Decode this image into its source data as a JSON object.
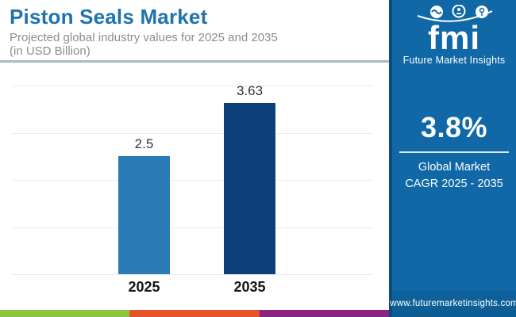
{
  "header": {
    "title": "Piston Seals Market",
    "subtitle_line1": "Projected global industry values for 2025 and 2035",
    "subtitle_line2": "(in USD Billion)"
  },
  "chart_data": {
    "type": "bar",
    "title": "Piston Seals Market",
    "subtitle": "Projected global industry values for 2025 and 2035 (in USD Billion)",
    "categories": [
      "2025",
      "2035"
    ],
    "values": [
      2.5,
      3.63
    ],
    "value_labels": [
      "2.5",
      "3.63"
    ],
    "bar_colors": [
      "#2a7ab5",
      "#0d4078"
    ],
    "xlabel": "",
    "ylabel": "",
    "ylim": [
      0,
      4
    ],
    "gridline_step": 1,
    "grid": true,
    "legend": "none"
  },
  "sidebar": {
    "logo": {
      "brand": "fmi",
      "caption": "Future Market Insights",
      "icons": [
        "handshake-icon",
        "person-chart-icon",
        "globe-pin-icon",
        "swoosh-arc"
      ]
    },
    "cagr_value": "3.8%",
    "cagr_label_line1": "Global Market",
    "cagr_label_line2": "CAGR 2025 - 2035",
    "website": "www.futuremarketinsights.com"
  },
  "footer_stripe": {
    "colors": [
      "#8cc63f",
      "#e4552b",
      "#8b2483"
    ]
  },
  "colors": {
    "title_blue": "#1f74ad",
    "subtitle_gray": "#8d8d8d",
    "sidebar_blue": "#1068a7",
    "sidebar_border_navy": "#0d4a7e",
    "header_rule": "#a5bac8",
    "gridline": "#ececec"
  }
}
